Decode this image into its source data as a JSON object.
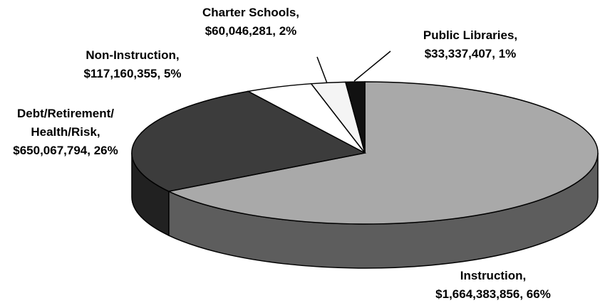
{
  "chart_data": {
    "type": "pie3d",
    "categories": [
      "Instruction,",
      "Debt/Retirement/ Health/Risk,",
      "Non-Instruction,",
      "Charter Schools,",
      "Public Libraries,"
    ],
    "values": [
      1664383856,
      650067794,
      117160355,
      60046281,
      33337407
    ],
    "value_labels": [
      "$1,664,383,856, 66%",
      "$650,067,794, 26%",
      "$117,160,355, 5%",
      "$60,046,281, 2%",
      "$33,337,407, 1%"
    ],
    "colors": [
      "#a9a9a9",
      "#3c3c3c",
      "#ffffff",
      "#f4f4f4",
      "#111111"
    ]
  }
}
